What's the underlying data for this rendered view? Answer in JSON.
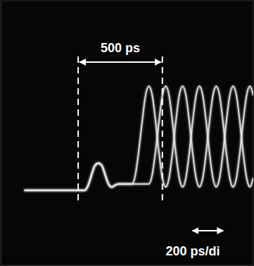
{
  "chart_data": {
    "type": "line",
    "x": [
      0,
      20,
      40,
      60,
      80,
      100,
      120,
      140,
      160,
      180,
      200,
      220,
      240,
      260,
      280,
      300,
      320,
      340,
      360,
      380,
      400,
      420,
      440,
      460,
      480,
      500,
      520,
      540,
      560,
      580,
      600,
      620,
      640,
      660,
      680,
      700,
      720,
      740,
      760,
      780,
      800,
      820,
      840,
      860,
      880,
      900,
      920,
      940,
      960,
      980,
      1000,
      1020,
      1040,
      1060,
      1080,
      1100,
      1120,
      1140,
      1160,
      1180,
      1200,
      1220,
      1240,
      1260,
      1280,
      1300,
      1320,
      1340,
      1360,
      1380,
      1400,
      1420,
      1440,
      1460,
      1480,
      1500
    ],
    "xlim": [
      0,
      1500
    ],
    "ylim": [
      -0.72,
      1.82
    ],
    "tick_labels": false,
    "series": [
      {
        "color": "#e8e8e8",
        "values": [
          null,
          null,
          null,
          null,
          null,
          null,
          null,
          0,
          0,
          0,
          0,
          0,
          0,
          0,
          0,
          0,
          0,
          0,
          0,
          0,
          0,
          0,
          0,
          0,
          0,
          0,
          0.05,
          0.15,
          0.24,
          0.26,
          0.24,
          0.15,
          0.06,
          0.03,
          0.05,
          0.06,
          0.06,
          0.06,
          0.06,
          0.06,
          0.15,
          0.38,
          0.66,
          0.91,
          1,
          0.91,
          0.66,
          0.36,
          0.12,
          0.03,
          0.12,
          0.36,
          0.66,
          0.91,
          1,
          0.91,
          0.66,
          0.36,
          0.12,
          0.03,
          0.12,
          0.36,
          0.66,
          0.91,
          1,
          0.91,
          0.66,
          0.36,
          0.12,
          0.03,
          0.12,
          0.36,
          0.66,
          0.91,
          1,
          0.91
        ]
      },
      {
        "color": "#e8e8e8",
        "values": [
          null,
          null,
          null,
          null,
          null,
          null,
          null,
          0,
          0,
          0,
          0,
          0,
          0,
          0,
          0,
          0,
          0,
          0,
          0,
          0,
          0,
          0,
          0,
          0,
          0,
          0,
          0.05,
          0.15,
          0.24,
          0.26,
          0.24,
          0.15,
          0.06,
          0.03,
          0.05,
          0.06,
          0.06,
          0.06,
          0.06,
          0.06,
          0.06,
          0.06,
          0.06,
          0.06,
          0.06,
          0.15,
          0.38,
          0.66,
          0.91,
          1,
          0.91,
          0.66,
          0.36,
          0.12,
          0.03,
          0.12,
          0.36,
          0.66,
          0.91,
          1,
          0.91,
          0.66,
          0.36,
          0.12,
          0.03,
          0.12,
          0.36,
          0.66,
          0.91,
          1,
          0.91,
          0.66,
          0.36,
          0.12,
          0.03,
          0.12
        ]
      }
    ],
    "annotations": [
      {
        "text": "500 ps",
        "x": [
          460,
          960
        ]
      },
      {
        "text": "200 ps/di",
        "x": [
          1130,
          1330
        ]
      }
    ]
  }
}
